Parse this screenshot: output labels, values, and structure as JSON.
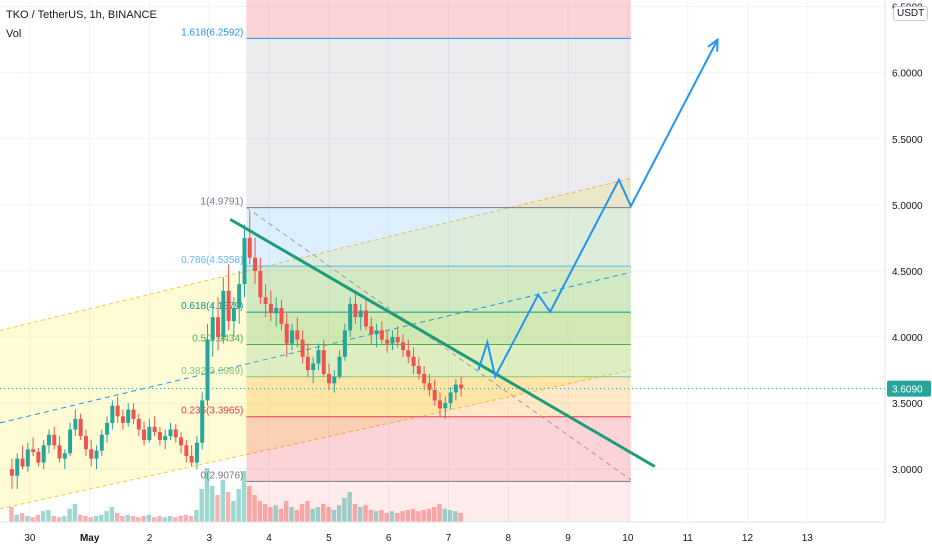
{
  "chart_data": {
    "type": "candlestick",
    "title": "TKO / TetherUS, 1h, BINANCE",
    "volume_label": "Vol",
    "currency": "USDT",
    "x_ticks": [
      "30",
      "May",
      "2",
      "3",
      "4",
      "5",
      "6",
      "7",
      "8",
      "9",
      "10",
      "11",
      "12",
      "13"
    ],
    "x_tick_days": [
      30,
      31,
      32,
      33,
      34,
      35,
      36,
      37,
      38,
      39,
      40,
      41,
      42,
      43
    ],
    "y_ticks": [
      "3.0000",
      "3.5000",
      "4.0000",
      "4.5000",
      "5.0000",
      "5.5000",
      "6.0000",
      "6.5000"
    ],
    "y_tick_values": [
      3.0,
      3.5,
      4.0,
      4.5,
      5.0,
      5.5,
      6.0,
      6.5
    ],
    "xlim": [
      29.5,
      44.3
    ],
    "ylim": [
      2.6,
      6.55
    ],
    "last_price": "3.6090",
    "last_price_value": 3.609,
    "colors": {
      "up": "#26a69a",
      "down": "#ef5350",
      "trendline": "#1e9c7a",
      "projection": "#2196f3",
      "last_price": "#26a69a",
      "text": "#131722",
      "grid": "#f0f3fa"
    },
    "fib_retracement": {
      "start_day": 33.62,
      "end_day": 40.05,
      "levels": [
        {
          "label": "0(2.9076)",
          "value": 2.9076,
          "color": "#787b86"
        },
        {
          "label": "0.236(3.3965)",
          "value": 3.3965,
          "color": "#f23645"
        },
        {
          "label": "0.382(3.6989)",
          "value": 3.6989,
          "color": "#81c784"
        },
        {
          "label": "0.5(3.9434)",
          "value": 3.9434,
          "color": "#4caf50"
        },
        {
          "label": "0.618(4.1879)",
          "value": 4.1879,
          "color": "#089981"
        },
        {
          "label": "0.786(4.5358)",
          "value": 4.5358,
          "color": "#64b5f6"
        },
        {
          "label": "1(4.9791)",
          "value": 4.9791,
          "color": "#787b86"
        },
        {
          "label": "1.618(6.2592)",
          "value": 6.2592,
          "color": "#2196f3"
        }
      ]
    },
    "parallel_channel": {
      "x": [
        29.5,
        40.05
      ],
      "lower": [
        2.7,
        3.75
      ],
      "middle": [
        3.35,
        4.49
      ],
      "upper": [
        4.05,
        5.2
      ]
    },
    "trendline": {
      "x": [
        33.35,
        40.45
      ],
      "y": [
        4.89,
        3.02
      ]
    },
    "dashed_line": {
      "x": [
        33.62,
        40.05
      ],
      "y": [
        4.98,
        2.92
      ]
    },
    "projection_path": {
      "x": [
        37.5,
        37.65,
        37.78,
        38.5,
        38.7,
        39.85,
        40.05,
        41.5
      ],
      "y": [
        3.75,
        3.96,
        3.7,
        4.32,
        4.19,
        5.19,
        4.99,
        6.25
      ]
    },
    "ohlc": [
      [
        3.0,
        3.08,
        2.85,
        2.95
      ],
      [
        2.95,
        3.12,
        2.85,
        3.08
      ],
      [
        3.08,
        3.18,
        3.0,
        3.02
      ],
      [
        3.02,
        3.2,
        2.98,
        3.15
      ],
      [
        3.15,
        3.24,
        3.1,
        3.13
      ],
      [
        3.13,
        3.16,
        3.02,
        3.05
      ],
      [
        3.05,
        3.22,
        3.0,
        3.18
      ],
      [
        3.18,
        3.3,
        3.12,
        3.26
      ],
      [
        3.26,
        3.32,
        3.15,
        3.18
      ],
      [
        3.18,
        3.25,
        3.05,
        3.08
      ],
      [
        3.08,
        3.15,
        3.0,
        3.12
      ],
      [
        3.12,
        3.35,
        3.1,
        3.3
      ],
      [
        3.3,
        3.45,
        3.25,
        3.38
      ],
      [
        3.38,
        3.42,
        3.22,
        3.25
      ],
      [
        3.25,
        3.3,
        3.1,
        3.15
      ],
      [
        3.15,
        3.22,
        3.02,
        3.08
      ],
      [
        3.08,
        3.18,
        3.0,
        3.14
      ],
      [
        3.14,
        3.3,
        3.1,
        3.26
      ],
      [
        3.26,
        3.4,
        3.2,
        3.35
      ],
      [
        3.35,
        3.52,
        3.3,
        3.48
      ],
      [
        3.48,
        3.55,
        3.35,
        3.4
      ],
      [
        3.4,
        3.45,
        3.3,
        3.35
      ],
      [
        3.35,
        3.5,
        3.32,
        3.45
      ],
      [
        3.45,
        3.5,
        3.34,
        3.38
      ],
      [
        3.38,
        3.42,
        3.25,
        3.3
      ],
      [
        3.3,
        3.36,
        3.18,
        3.22
      ],
      [
        3.22,
        3.38,
        3.2,
        3.32
      ],
      [
        3.32,
        3.4,
        3.25,
        3.28
      ],
      [
        3.28,
        3.32,
        3.18,
        3.22
      ],
      [
        3.22,
        3.3,
        3.15,
        3.25
      ],
      [
        3.25,
        3.35,
        3.22,
        3.3
      ],
      [
        3.3,
        3.34,
        3.2,
        3.24
      ],
      [
        3.24,
        3.28,
        3.12,
        3.18
      ],
      [
        3.18,
        3.22,
        3.05,
        3.1
      ],
      [
        3.1,
        3.18,
        3.02,
        3.05
      ],
      [
        3.05,
        3.25,
        3.0,
        3.2
      ],
      [
        3.2,
        3.58,
        3.15,
        3.52
      ],
      [
        3.52,
        4.1,
        3.48,
        3.98
      ],
      [
        3.98,
        4.25,
        3.85,
        4.15
      ],
      [
        4.15,
        4.3,
        3.9,
        4.0
      ],
      [
        4.0,
        4.45,
        3.95,
        4.35
      ],
      [
        4.35,
        4.55,
        4.05,
        4.12
      ],
      [
        4.12,
        4.3,
        4.0,
        4.22
      ],
      [
        4.22,
        4.5,
        4.1,
        4.4
      ],
      [
        4.4,
        4.85,
        4.3,
        4.75
      ],
      [
        4.75,
        4.95,
        4.55,
        4.6
      ],
      [
        4.6,
        4.75,
        4.4,
        4.5
      ],
      [
        4.5,
        4.6,
        4.25,
        4.3
      ],
      [
        4.3,
        4.4,
        4.15,
        4.25
      ],
      [
        4.25,
        4.35,
        4.12,
        4.18
      ],
      [
        4.18,
        4.3,
        4.08,
        4.22
      ],
      [
        4.22,
        4.28,
        4.05,
        4.1
      ],
      [
        4.1,
        4.18,
        3.85,
        3.95
      ],
      [
        3.95,
        4.1,
        3.9,
        4.05
      ],
      [
        4.05,
        4.15,
        3.92,
        3.98
      ],
      [
        3.98,
        4.05,
        3.8,
        3.85
      ],
      [
        3.85,
        3.95,
        3.7,
        3.75
      ],
      [
        3.75,
        3.85,
        3.65,
        3.8
      ],
      [
        3.8,
        3.95,
        3.75,
        3.9
      ],
      [
        3.9,
        3.98,
        3.7,
        3.72
      ],
      [
        3.72,
        3.8,
        3.6,
        3.65
      ],
      [
        3.65,
        3.75,
        3.58,
        3.7
      ],
      [
        3.7,
        3.9,
        3.68,
        3.85
      ],
      [
        3.85,
        4.1,
        3.82,
        4.05
      ],
      [
        4.05,
        4.3,
        4.0,
        4.25
      ],
      [
        4.25,
        4.35,
        4.1,
        4.15
      ],
      [
        4.15,
        4.25,
        4.05,
        4.2
      ],
      [
        4.2,
        4.28,
        4.05,
        4.08
      ],
      [
        4.08,
        4.15,
        3.95,
        4.02
      ],
      [
        4.02,
        4.1,
        3.92,
        4.05
      ],
      [
        4.05,
        4.12,
        3.95,
        3.98
      ],
      [
        3.98,
        4.05,
        3.88,
        3.95
      ],
      [
        3.95,
        4.05,
        3.9,
        4.0
      ],
      [
        4.0,
        4.08,
        3.92,
        3.96
      ],
      [
        3.96,
        4.02,
        3.85,
        3.9
      ],
      [
        3.9,
        3.98,
        3.8,
        3.85
      ],
      [
        3.85,
        3.92,
        3.72,
        3.78
      ],
      [
        3.78,
        3.85,
        3.68,
        3.72
      ],
      [
        3.72,
        3.78,
        3.6,
        3.65
      ],
      [
        3.65,
        3.72,
        3.55,
        3.6
      ],
      [
        3.6,
        3.68,
        3.48,
        3.52
      ],
      [
        3.52,
        3.58,
        3.4,
        3.46
      ],
      [
        3.46,
        3.55,
        3.38,
        3.5
      ],
      [
        3.5,
        3.62,
        3.45,
        3.58
      ],
      [
        3.58,
        3.68,
        3.52,
        3.64
      ],
      [
        3.64,
        3.7,
        3.55,
        3.61
      ]
    ],
    "volume": [
      0.25,
      0.12,
      0.15,
      0.1,
      0.08,
      0.12,
      0.18,
      0.2,
      0.1,
      0.08,
      0.1,
      0.22,
      0.3,
      0.12,
      0.1,
      0.08,
      0.1,
      0.12,
      0.18,
      0.25,
      0.15,
      0.1,
      0.12,
      0.1,
      0.08,
      0.1,
      0.12,
      0.08,
      0.1,
      0.08,
      0.1,
      0.08,
      0.1,
      0.12,
      0.1,
      0.2,
      0.55,
      0.9,
      0.6,
      0.45,
      0.7,
      0.5,
      0.35,
      0.55,
      0.85,
      0.6,
      0.45,
      0.35,
      0.3,
      0.25,
      0.28,
      0.22,
      0.35,
      0.25,
      0.2,
      0.3,
      0.35,
      0.22,
      0.25,
      0.3,
      0.25,
      0.2,
      0.28,
      0.4,
      0.5,
      0.3,
      0.25,
      0.28,
      0.2,
      0.18,
      0.2,
      0.15,
      0.18,
      0.15,
      0.18,
      0.2,
      0.22,
      0.18,
      0.2,
      0.22,
      0.25,
      0.3,
      0.22,
      0.2,
      0.18,
      0.15
    ]
  }
}
